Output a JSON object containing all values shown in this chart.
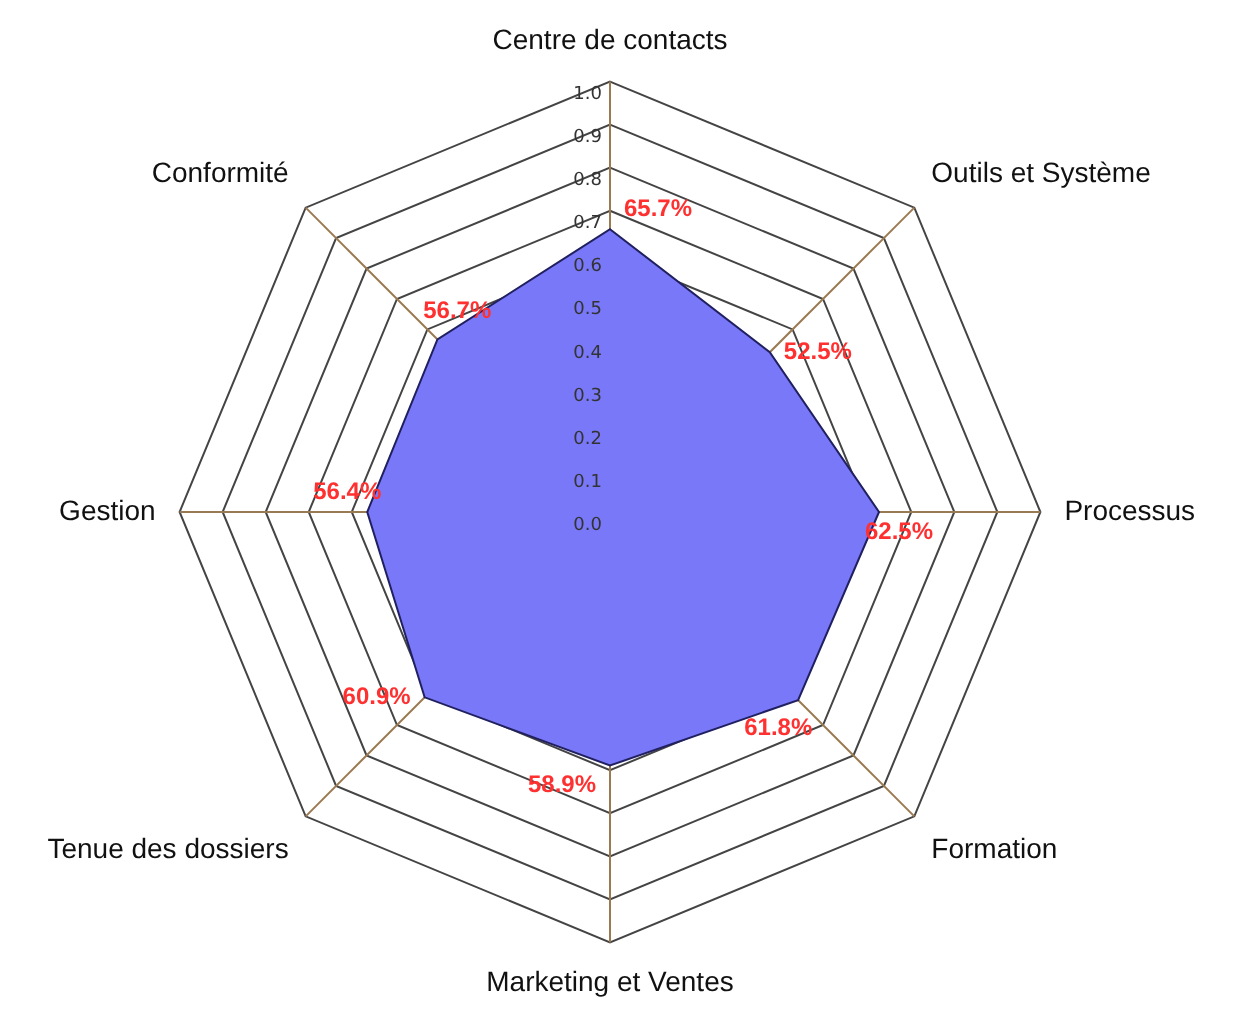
{
  "chart_data": {
    "type": "radar",
    "categories": [
      "Centre de contacts",
      "Outils et Système",
      "Processus",
      "Formation",
      "Marketing et Ventes",
      "Tenue des dossiers",
      "Gestion",
      "Conformité"
    ],
    "series": [
      {
        "color": "#7878f8",
        "values": [
          0.657,
          0.525,
          0.625,
          0.618,
          0.589,
          0.609,
          0.564,
          0.567
        ],
        "value_labels": [
          "65.7%",
          "52.5%",
          "62.5%",
          "61.8%",
          "58.9%",
          "60.9%",
          "56.4%",
          "56.7%"
        ]
      }
    ],
    "ylim": [
      0,
      1
    ],
    "yticks": [
      {
        "value": 0,
        "label": "0.0"
      },
      0.1,
      0.2,
      0.3,
      0.4,
      0.5,
      0.6,
      0.7,
      0.8,
      0.9,
      {
        "value": 1,
        "label": "1.0"
      }
    ],
    "grid": true,
    "legend": false
  }
}
